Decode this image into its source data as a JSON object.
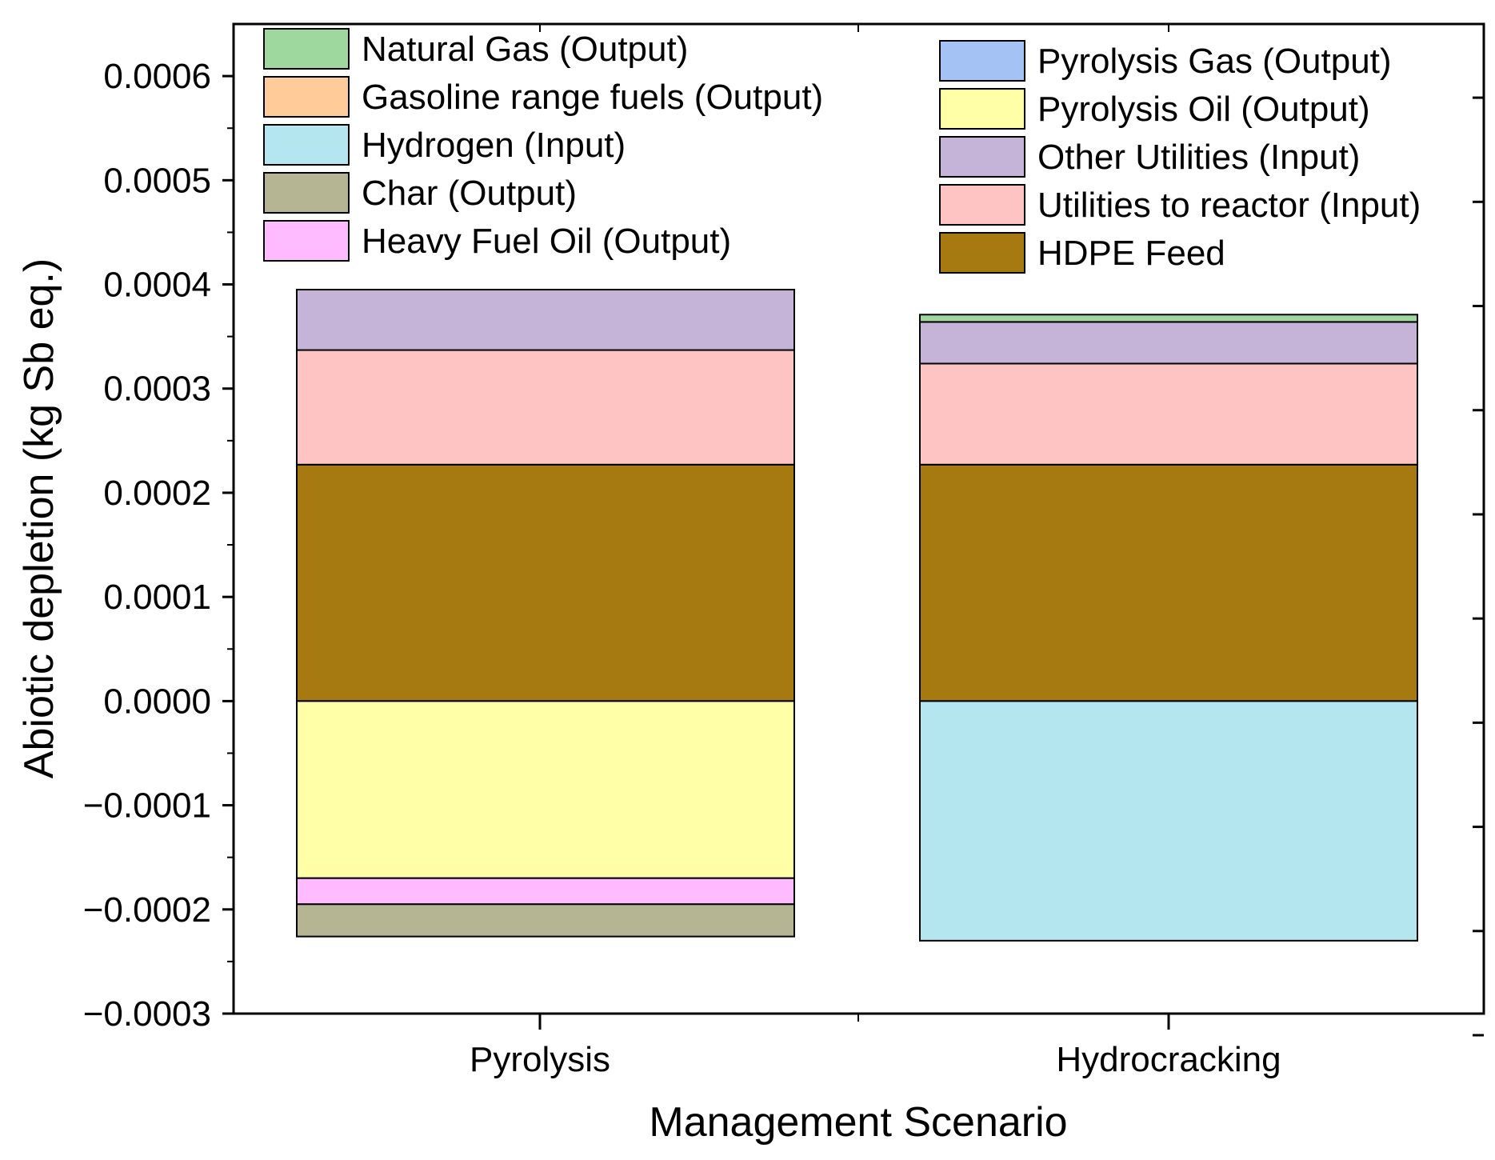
{
  "chart_data": {
    "type": "bar",
    "stacked": true,
    "title": "",
    "xlabel": "Management Scenario",
    "ylabel": "Abiotic depletion (kg Sb eq.)",
    "ylim": [
      -0.0003,
      0.00065
    ],
    "y_ticks": [
      "0.0006",
      "0.0005",
      "0.0004",
      "0.0003",
      "0.0002",
      "0.0001",
      "0.0000",
      "−0.0001",
      "−0.0002",
      "−0.0003"
    ],
    "y_tick_values": [
      0.0006,
      0.0005,
      0.0004,
      0.0003,
      0.0002,
      0.0001,
      0,
      -0.0001,
      -0.0002,
      -0.0003
    ],
    "categories": [
      "Pyrolysis",
      "Hydrocracking"
    ],
    "grid": false,
    "legend_placement": "top",
    "series": [
      {
        "name": "Natural Gas (Output)",
        "color": "#9fd89f",
        "values": [
          0,
          7e-06
        ]
      },
      {
        "name": "Gasoline range fuels (Output)",
        "color": "#ffcc99",
        "values": [
          0,
          0
        ]
      },
      {
        "name": "Hydrogen (Input)",
        "color": "#b3e6ee",
        "values": [
          0,
          -0.00023
        ]
      },
      {
        "name": "Char (Output)",
        "color": "#b5b593",
        "values": [
          -3.1e-05,
          0
        ]
      },
      {
        "name": "Heavy Fuel Oil (Output)",
        "color": "#ffbbff",
        "values": [
          -2.5e-05,
          0
        ]
      },
      {
        "name": "Pyrolysis Gas (Output)",
        "color": "#a4c2f4",
        "values": [
          0,
          0
        ]
      },
      {
        "name": "Pyrolysis Oil (Output)",
        "color": "#ffffa8",
        "values": [
          -0.00017,
          0
        ]
      },
      {
        "name": "Other Utilities (Input)",
        "color": "#c6b3d8",
        "values": [
          5.8e-05,
          4e-05
        ]
      },
      {
        "name": "Utilities to reactor (Input)",
        "color": "#fec4c4",
        "values": [
          0.00011,
          9.7e-05
        ]
      },
      {
        "name": "HDPE Feed",
        "color": "#a67a11",
        "values": [
          0.000227,
          0.000227
        ]
      }
    ],
    "legend_columns": [
      [
        "Natural Gas (Output)",
        "Gasoline range fuels (Output)",
        "Hydrogen (Input)",
        "Char (Output)",
        "Heavy Fuel Oil (Output)"
      ],
      [
        "Pyrolysis Gas (Output)",
        "Pyrolysis Oil (Output)",
        "Other Utilities (Input)",
        "Utilities to reactor (Input)",
        "HDPE Feed"
      ]
    ],
    "stack_order_positive": [
      "HDPE Feed",
      "Utilities to reactor (Input)",
      "Other Utilities (Input)",
      "Natural Gas (Output)"
    ],
    "stack_order_negative": [
      "Pyrolysis Oil (Output)",
      "Heavy Fuel Oil (Output)",
      "Char (Output)",
      "Hydrogen (Input)"
    ]
  }
}
